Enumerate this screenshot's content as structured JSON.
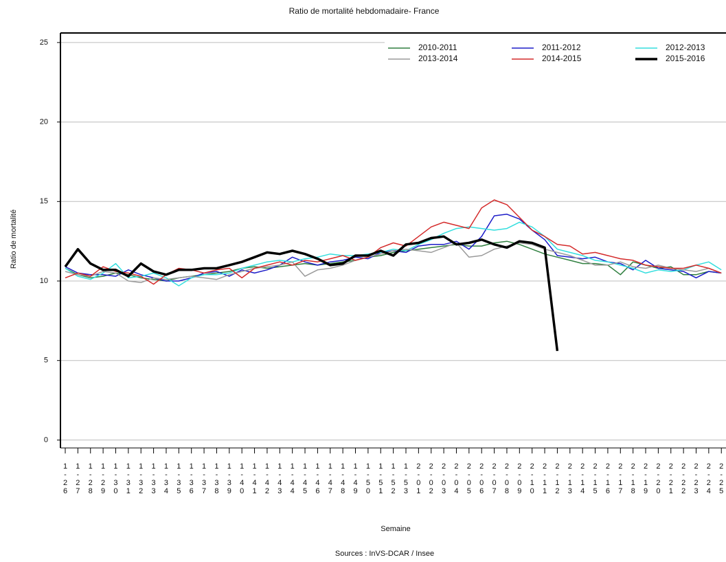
{
  "chart_data": {
    "type": "line",
    "title": "Ratio de mortalité hebdomadaire- France",
    "y_label": "Ratio de mortalité",
    "x_label": "Semaine",
    "source": "Sources : InVS-DCAR / Insee",
    "categories": [
      "1-26",
      "1-27",
      "1-28",
      "1-29",
      "1-30",
      "1-31",
      "1-32",
      "1-33",
      "1-34",
      "1-35",
      "1-36",
      "1-37",
      "1-38",
      "1-39",
      "1-40",
      "1-41",
      "1-42",
      "1-43",
      "1-44",
      "1-45",
      "1-46",
      "1-47",
      "1-48",
      "1-49",
      "1-50",
      "1-51",
      "1-52",
      "1-53",
      "2-01",
      "2-02",
      "2-03",
      "2-04",
      "2-05",
      "2-06",
      "2-07",
      "2-08",
      "2-09",
      "2-10",
      "2-11",
      "2-12",
      "2-13",
      "2-14",
      "2-15",
      "2-16",
      "2-17",
      "2-18",
      "2-19",
      "2-20",
      "2-21",
      "2-22",
      "2-23",
      "2-24",
      "2-25"
    ],
    "ylim": [
      -0.5,
      25.6
    ],
    "yticks": [
      0,
      5,
      10,
      15,
      20,
      25
    ],
    "grid": true,
    "legend": "top-right",
    "series": [
      {
        "name": "2010-2011",
        "color": "#2f7f3f",
        "line_width": 1.5,
        "values": [
          10.8,
          10.4,
          10.2,
          10.3,
          10.5,
          10.4,
          10.2,
          10.1,
          10.0,
          10.2,
          10.3,
          10.4,
          10.5,
          10.6,
          10.8,
          10.9,
          10.8,
          10.9,
          11.0,
          11.1,
          11.0,
          11.1,
          11.2,
          11.3,
          11.5,
          11.6,
          11.8,
          11.9,
          12.0,
          12.1,
          12.2,
          12.3,
          12.2,
          12.2,
          12.4,
          12.5,
          12.3,
          12.0,
          11.7,
          11.5,
          11.3,
          11.1,
          11.1,
          11.0,
          10.4,
          11.2,
          11.0,
          10.8,
          10.9,
          10.4,
          10.4,
          10.6,
          10.5
        ]
      },
      {
        "name": "2011-2012",
        "color": "#1c1cc8",
        "line_width": 1.5,
        "values": [
          10.9,
          10.5,
          10.4,
          10.4,
          10.3,
          10.7,
          10.4,
          10.2,
          10.0,
          10.0,
          10.2,
          10.5,
          10.6,
          10.3,
          10.7,
          10.5,
          10.7,
          11.0,
          11.5,
          11.2,
          11.0,
          11.2,
          11.3,
          11.5,
          11.4,
          11.8,
          11.9,
          11.8,
          12.2,
          12.3,
          12.3,
          12.5,
          12.0,
          12.8,
          14.1,
          14.2,
          13.9,
          13.2,
          12.6,
          11.6,
          11.5,
          11.4,
          11.5,
          11.2,
          11.1,
          10.7,
          11.3,
          10.8,
          10.7,
          10.6,
          10.2,
          10.6,
          10.5
        ]
      },
      {
        "name": "2012-2013",
        "color": "#33dede",
        "line_width": 1.5,
        "values": [
          10.8,
          10.3,
          10.1,
          10.5,
          11.1,
          10.2,
          10.3,
          10.5,
          10.2,
          9.7,
          10.2,
          10.4,
          10.4,
          10.5,
          10.8,
          11.0,
          11.2,
          11.3,
          11.2,
          11.4,
          11.5,
          11.7,
          11.6,
          11.6,
          11.7,
          11.8,
          12.0,
          11.9,
          12.3,
          12.6,
          13.0,
          13.3,
          13.4,
          13.3,
          13.2,
          13.3,
          13.7,
          13.4,
          12.8,
          12.0,
          11.8,
          11.6,
          11.3,
          11.2,
          11.0,
          10.8,
          10.5,
          10.7,
          10.6,
          10.7,
          11.0,
          11.2,
          10.7
        ]
      },
      {
        "name": "2013-2014",
        "color": "#9a9a9a",
        "line_width": 1.5,
        "values": [
          10.6,
          10.4,
          10.3,
          10.6,
          10.5,
          10.0,
          9.9,
          10.2,
          10.1,
          10.2,
          10.3,
          10.2,
          10.1,
          10.4,
          10.6,
          10.8,
          10.9,
          11.0,
          11.2,
          10.3,
          10.7,
          10.8,
          11.0,
          11.3,
          11.5,
          11.7,
          11.9,
          12.0,
          11.9,
          11.8,
          12.1,
          12.4,
          11.5,
          11.6,
          12.0,
          12.2,
          12.4,
          12.3,
          12.0,
          11.8,
          11.6,
          11.3,
          11.0,
          11.0,
          11.2,
          10.9,
          10.8,
          11.0,
          10.8,
          10.7,
          10.6,
          10.8,
          10.5
        ]
      },
      {
        "name": "2014-2015",
        "color": "#d42a2a",
        "line_width": 1.5,
        "values": [
          10.2,
          10.5,
          10.3,
          10.9,
          10.6,
          10.5,
          10.3,
          9.8,
          10.4,
          10.8,
          10.7,
          10.5,
          10.7,
          10.8,
          10.2,
          10.8,
          11.0,
          11.2,
          11.0,
          11.3,
          11.2,
          11.4,
          11.6,
          11.3,
          11.5,
          12.1,
          12.4,
          12.2,
          12.8,
          13.4,
          13.7,
          13.5,
          13.3,
          14.6,
          15.1,
          14.8,
          14.0,
          13.2,
          12.8,
          12.3,
          12.2,
          11.7,
          11.8,
          11.6,
          11.4,
          11.3,
          11.0,
          10.9,
          10.8,
          10.8,
          11.0,
          10.8,
          10.5
        ]
      },
      {
        "name": "2015-2016",
        "color": "#000000",
        "line_width": 3.5,
        "values": [
          10.9,
          12.0,
          11.1,
          10.7,
          10.7,
          10.3,
          11.1,
          10.6,
          10.4,
          10.7,
          10.7,
          10.8,
          10.8,
          11.0,
          11.2,
          11.5,
          11.8,
          11.7,
          11.9,
          11.7,
          11.4,
          11.0,
          11.1,
          11.6,
          11.6,
          11.9,
          11.6,
          12.3,
          12.4,
          12.7,
          12.8,
          12.3,
          12.4,
          12.6,
          12.3,
          12.1,
          12.5,
          12.4,
          12.1,
          5.6,
          null,
          null,
          null,
          null,
          null,
          null,
          null,
          null,
          null,
          null,
          null,
          null,
          null
        ]
      }
    ]
  }
}
